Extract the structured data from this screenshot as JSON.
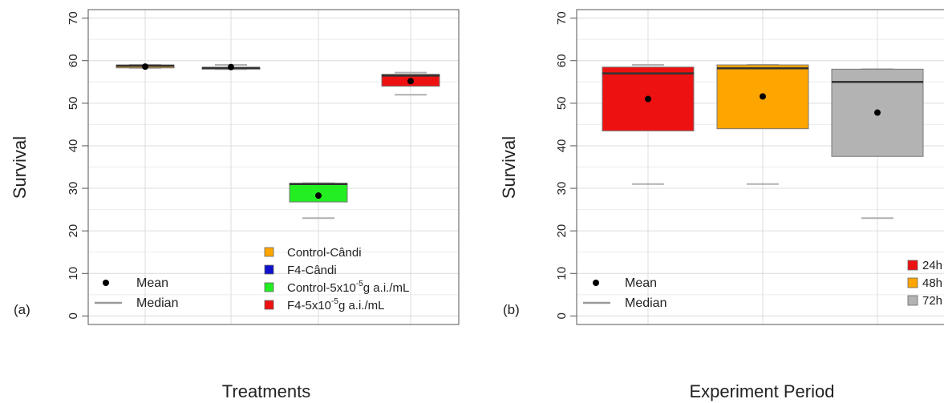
{
  "chart_data": [
    {
      "type": "box",
      "panel_label": "(a)",
      "xlabel": "Treatments",
      "ylabel": "Survival",
      "ylim": [
        -2,
        72
      ],
      "yticks": [
        0,
        10,
        20,
        30,
        40,
        50,
        60,
        70
      ],
      "grid": true,
      "categories": [
        "Control-Cândi",
        "F4-Cândi",
        "Control-5x10⁻⁵g a.i./mL",
        "F4-5x10⁻⁵g a.i./mL"
      ],
      "boxes": [
        {
          "color": "#e8a23a",
          "q1": 58.3,
          "median": 58.8,
          "q3": 59.0,
          "whisker_low": 58.3,
          "whisker_high": 59.0,
          "mean": 58.6
        },
        {
          "color": "#1b22c8",
          "q1": 58.0,
          "median": 58.3,
          "q3": 58.4,
          "whisker_low": 58.0,
          "whisker_high": 59.0,
          "mean": 58.5
        },
        {
          "color": "#22ee22",
          "q1": 26.8,
          "median": 31.0,
          "q3": 31.2,
          "whisker_low": 23.0,
          "whisker_high": 31.2,
          "mean": 28.3
        },
        {
          "color": "#ee1111",
          "q1": 54.0,
          "median": 56.5,
          "q3": 56.8,
          "whisker_low": 52.0,
          "whisker_high": 57.2,
          "mean": 55.2
        }
      ],
      "legend": {
        "stats": [
          {
            "label": "Mean",
            "symbol": "dot"
          },
          {
            "label": "Median",
            "symbol": "line"
          }
        ],
        "groups": [
          {
            "color": "#ffa500",
            "label": "Control-Cândi"
          },
          {
            "color": "#1111cc",
            "label": "F4-Cândi"
          },
          {
            "color": "#22ee22",
            "label_pre": "Control-5x10",
            "label_sup": "-5",
            "label_post": "g a.i./mL"
          },
          {
            "color": "#ee1111",
            "label_pre": "F4-5x10",
            "label_sup": "-5",
            "label_post": "g a.i./mL"
          }
        ]
      }
    },
    {
      "type": "box",
      "panel_label": "(b)",
      "xlabel": "Experiment Period",
      "ylabel": "Survival",
      "ylim": [
        -2,
        72
      ],
      "yticks": [
        0,
        10,
        20,
        30,
        40,
        50,
        60,
        70
      ],
      "grid": true,
      "categories": [
        "24h",
        "48h",
        "72h"
      ],
      "boxes": [
        {
          "color": "#ee1111",
          "q1": 43.5,
          "median": 57.0,
          "q3": 58.5,
          "whisker_low": 31.0,
          "whisker_high": 59.0,
          "mean": 51.0
        },
        {
          "color": "#ffa500",
          "q1": 44.0,
          "median": 58.2,
          "q3": 59.0,
          "whisker_low": 31.0,
          "whisker_high": 59.0,
          "mean": 51.6
        },
        {
          "color": "#b3b3b3",
          "q1": 37.5,
          "median": 55.0,
          "q3": 58.0,
          "whisker_low": 23.0,
          "whisker_high": 58.0,
          "mean": 47.8
        }
      ],
      "legend": {
        "stats": [
          {
            "label": "Mean",
            "symbol": "dot"
          },
          {
            "label": "Median",
            "symbol": "line"
          }
        ],
        "groups": [
          {
            "color": "#ee1111",
            "label": "24h"
          },
          {
            "color": "#ffa500",
            "label": "48h"
          },
          {
            "color": "#b3b3b3",
            "label": "72h"
          }
        ]
      }
    }
  ]
}
